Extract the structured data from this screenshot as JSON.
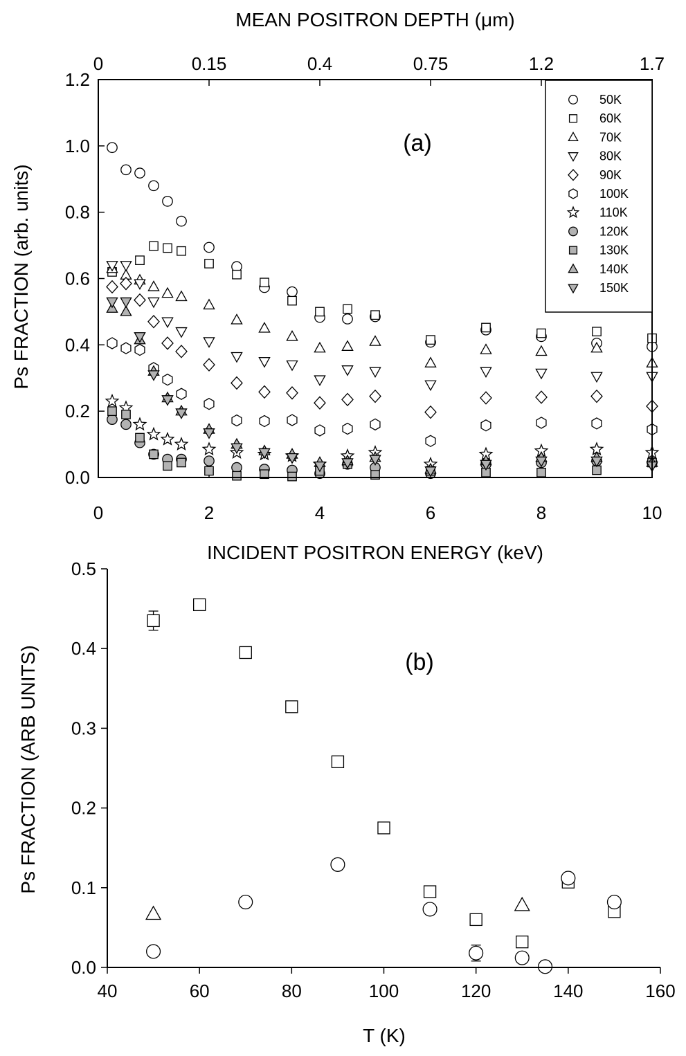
{
  "chart_data": [
    {
      "id": "panel-a",
      "type": "scatter",
      "panel_label": "(a)",
      "xlabel": "INCIDENT POSITRON ENERGY (keV)",
      "ylabel": "Ps FRACTION (arb. units)",
      "top_axis_label": "MEAN POSITRON DEPTH (μm)",
      "xlim": [
        0,
        10
      ],
      "ylim": [
        0,
        1.2
      ],
      "x_ticks": [
        0,
        2,
        4,
        6,
        8,
        10
      ],
      "y_ticks": [
        0.0,
        0.2,
        0.4,
        0.6,
        0.8,
        1.0,
        1.2
      ],
      "x_tick_labels": [
        "0",
        "2",
        "4",
        "6",
        "8",
        "10"
      ],
      "y_tick_labels": [
        "0.0",
        "0.2",
        "0.4",
        "0.6",
        "0.8",
        "1.0",
        "1.2"
      ],
      "top_ticks": [
        {
          "energy": 0.0,
          "label": "0"
        },
        {
          "energy": 2.0,
          "label": "0.15"
        },
        {
          "energy": 4.0,
          "label": "0.4"
        },
        {
          "energy": 6.0,
          "label": "0.75"
        },
        {
          "energy": 8.0,
          "label": "1.2"
        },
        {
          "energy": 10.0,
          "label": "1.7"
        }
      ],
      "grid": false,
      "legend_position": "top-right",
      "series": [
        {
          "name": "50K",
          "marker": "circle",
          "fill": "#ffffff",
          "x": [
            0.25,
            0.5,
            0.75,
            1.0,
            1.25,
            1.5,
            2.0,
            2.5,
            3.0,
            3.5,
            4.0,
            4.5,
            5.0,
            6.0,
            7.0,
            8.0,
            9.0,
            10.0
          ],
          "y": [
            0.995,
            0.928,
            0.918,
            0.88,
            0.833,
            0.773,
            0.694,
            0.636,
            0.573,
            0.56,
            0.483,
            0.478,
            0.485,
            0.408,
            0.445,
            0.425,
            0.405,
            0.395
          ]
        },
        {
          "name": "60K",
          "marker": "square",
          "fill": "#ffffff",
          "x": [
            0.25,
            0.75,
            1.0,
            1.25,
            1.5,
            2.0,
            2.5,
            3.0,
            3.5,
            4.0,
            4.5,
            5.0,
            6.0,
            7.0,
            8.0,
            9.0,
            10.0
          ],
          "y": [
            0.62,
            0.655,
            0.698,
            0.692,
            0.683,
            0.645,
            0.612,
            0.588,
            0.533,
            0.5,
            0.508,
            0.49,
            0.415,
            0.452,
            0.435,
            0.44,
            0.42
          ]
        },
        {
          "name": "70K",
          "marker": "triangle-up",
          "fill": "#ffffff",
          "x": [
            0.25,
            0.5,
            0.75,
            1.0,
            1.25,
            1.5,
            2.0,
            2.5,
            3.0,
            3.5,
            4.0,
            4.5,
            5.0,
            6.0,
            7.0,
            8.0,
            9.0,
            10.0
          ],
          "y": [
            0.63,
            0.61,
            0.595,
            0.575,
            0.555,
            0.545,
            0.52,
            0.475,
            0.45,
            0.425,
            0.39,
            0.395,
            0.41,
            0.345,
            0.385,
            0.38,
            0.39,
            0.345
          ]
        },
        {
          "name": "80K",
          "marker": "triangle-down",
          "fill": "#ffffff",
          "x": [
            0.25,
            0.5,
            0.75,
            1.0,
            1.25,
            1.5,
            2.0,
            2.5,
            3.0,
            3.5,
            4.0,
            4.5,
            5.0,
            6.0,
            7.0,
            8.0,
            9.0,
            10.0
          ],
          "y": [
            0.64,
            0.64,
            0.585,
            0.53,
            0.47,
            0.44,
            0.41,
            0.365,
            0.35,
            0.34,
            0.295,
            0.325,
            0.32,
            0.28,
            0.32,
            0.315,
            0.305,
            0.305
          ]
        },
        {
          "name": "90K",
          "marker": "diamond",
          "fill": "#ffffff",
          "x": [
            0.25,
            0.5,
            0.75,
            1.0,
            1.25,
            1.5,
            2.0,
            2.5,
            3.0,
            3.5,
            4.0,
            4.5,
            5.0,
            6.0,
            7.0,
            8.0,
            9.0,
            10.0
          ],
          "y": [
            0.575,
            0.585,
            0.535,
            0.47,
            0.405,
            0.38,
            0.34,
            0.285,
            0.258,
            0.255,
            0.225,
            0.235,
            0.245,
            0.197,
            0.24,
            0.242,
            0.245,
            0.215
          ]
        },
        {
          "name": "100K",
          "marker": "hexagon",
          "fill": "#ffffff",
          "x": [
            0.25,
            0.5,
            0.75,
            1.0,
            1.25,
            1.5,
            2.0,
            2.5,
            3.0,
            3.5,
            4.0,
            4.5,
            5.0,
            6.0,
            7.0,
            8.0,
            9.0,
            10.0
          ],
          "y": [
            0.405,
            0.39,
            0.385,
            0.33,
            0.295,
            0.252,
            0.222,
            0.172,
            0.17,
            0.173,
            0.142,
            0.147,
            0.16,
            0.11,
            0.157,
            0.165,
            0.163,
            0.145
          ]
        },
        {
          "name": "110K",
          "marker": "star",
          "fill": "#ffffff",
          "x": [
            0.25,
            0.5,
            0.75,
            1.0,
            1.25,
            1.5,
            2.0,
            2.5,
            3.0,
            3.5,
            4.0,
            4.5,
            5.0,
            6.0,
            7.0,
            8.0,
            9.0,
            10.0
          ],
          "y": [
            0.23,
            0.21,
            0.16,
            0.13,
            0.115,
            0.1,
            0.085,
            0.075,
            0.07,
            0.065,
            0.04,
            0.065,
            0.075,
            0.04,
            0.07,
            0.08,
            0.085,
            0.075
          ]
        },
        {
          "name": "120K",
          "marker": "circle",
          "fill": "#b3b3b3",
          "x": [
            0.25,
            0.5,
            0.75,
            1.0,
            1.25,
            1.5,
            2.0,
            2.5,
            3.0,
            3.5,
            4.0,
            4.5,
            5.0,
            6.0,
            7.0,
            8.0,
            9.0,
            10.0
          ],
          "y": [
            0.175,
            0.16,
            0.105,
            0.07,
            0.055,
            0.055,
            0.05,
            0.03,
            0.025,
            0.022,
            0.012,
            0.04,
            0.03,
            0.012,
            0.04,
            0.045,
            0.05,
            0.045
          ]
        },
        {
          "name": "130K",
          "marker": "square",
          "fill": "#b3b3b3",
          "x": [
            0.25,
            0.5,
            0.75,
            1.0,
            1.25,
            1.5,
            2.0,
            2.5,
            3.0,
            3.5,
            4.0,
            4.5,
            5.0,
            6.0,
            7.0,
            8.0,
            9.0,
            10.0
          ],
          "y": [
            0.2,
            0.19,
            0.12,
            0.07,
            0.035,
            0.045,
            0.02,
            0.005,
            0.01,
            0.003,
            0.02,
            0.04,
            0.008,
            0.02,
            0.015,
            0.015,
            0.022,
            0.045
          ]
        },
        {
          "name": "140K",
          "marker": "triangle-up",
          "fill": "#b3b3b3",
          "x": [
            0.25,
            0.5,
            0.75,
            1.0,
            1.25,
            1.5,
            2.0,
            2.5,
            3.0,
            3.5,
            4.0,
            4.5,
            5.0,
            6.0,
            7.0,
            8.0,
            9.0,
            10.0
          ],
          "y": [
            0.51,
            0.5,
            0.415,
            0.32,
            0.24,
            0.2,
            0.145,
            0.1,
            0.08,
            0.07,
            0.045,
            0.05,
            0.06,
            0.025,
            0.05,
            0.06,
            0.06,
            0.045
          ]
        },
        {
          "name": "150K",
          "marker": "triangle-down",
          "fill": "#b3b3b3",
          "x": [
            0.25,
            0.5,
            0.75,
            1.0,
            1.25,
            1.5,
            2.0,
            2.5,
            3.0,
            3.5,
            4.0,
            4.5,
            5.0,
            6.0,
            7.0,
            8.0,
            9.0,
            10.0
          ],
          "y": [
            0.53,
            0.53,
            0.425,
            0.31,
            0.235,
            0.195,
            0.135,
            0.09,
            0.075,
            0.06,
            0.035,
            0.045,
            0.055,
            0.02,
            0.04,
            0.05,
            0.05,
            0.035
          ]
        }
      ]
    },
    {
      "id": "panel-b",
      "type": "scatter",
      "panel_label": "(b)",
      "title": "INCIDENT POSITRON ENERGY (keV)",
      "xlabel": "T (K)",
      "ylabel": "Ps FRACTION (ARB UNITS)",
      "xlim": [
        40,
        160
      ],
      "ylim": [
        0,
        0.5
      ],
      "x_ticks": [
        40,
        60,
        80,
        100,
        120,
        140,
        160
      ],
      "y_ticks": [
        0.0,
        0.1,
        0.2,
        0.3,
        0.4,
        0.5
      ],
      "x_tick_labels": [
        "40",
        "60",
        "80",
        "100",
        "120",
        "140",
        "160"
      ],
      "y_tick_labels": [
        "0.0",
        "0.1",
        "0.2",
        "0.3",
        "0.4",
        "0.5"
      ],
      "grid": false,
      "series": [
        {
          "marker": "square",
          "fill": "#ffffff",
          "x": [
            50,
            60,
            70,
            80,
            90,
            100,
            110,
            120,
            130,
            140,
            150
          ],
          "y": [
            0.435,
            0.455,
            0.395,
            0.327,
            0.258,
            0.175,
            0.095,
            0.06,
            0.032,
            0.107,
            0.07
          ],
          "error": [
            0.012,
            0,
            0,
            0,
            0,
            0,
            0,
            0,
            0,
            0,
            0
          ]
        },
        {
          "marker": "circle",
          "fill": "#ffffff",
          "x": [
            50,
            70,
            90,
            110,
            120,
            130,
            135,
            140,
            150
          ],
          "y": [
            0.02,
            0.082,
            0.129,
            0.073,
            0.018,
            0.012,
            0.001,
            0.112,
            0.082
          ],
          "error": [
            0,
            0,
            0,
            0,
            0.01,
            0,
            0,
            0,
            0
          ]
        },
        {
          "marker": "triangle-up",
          "fill": "#ffffff",
          "x": [
            50,
            130
          ],
          "y": [
            0.067,
            0.078
          ],
          "error": [
            0,
            0
          ]
        }
      ]
    }
  ]
}
